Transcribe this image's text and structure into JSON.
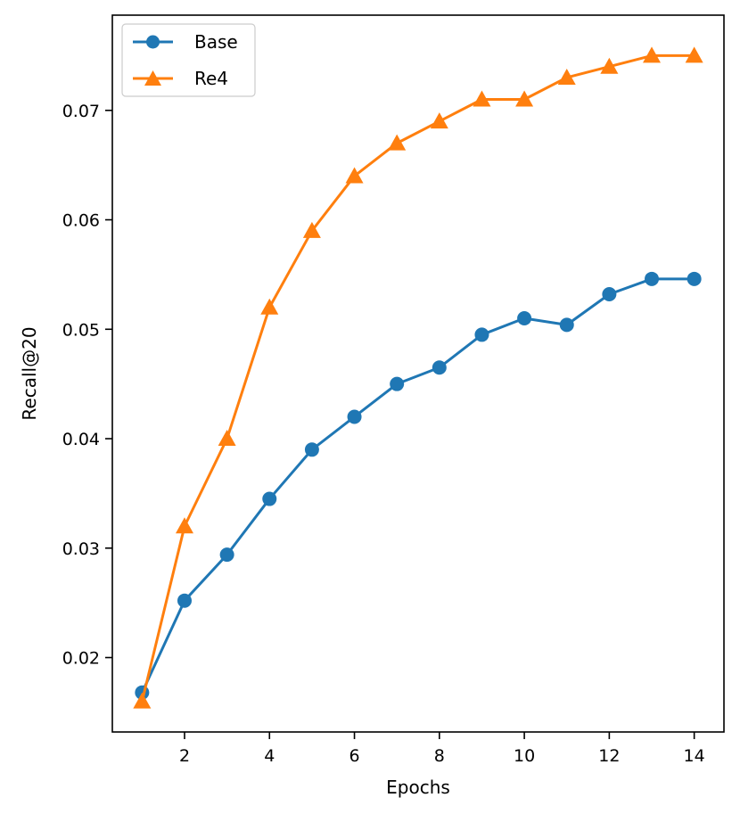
{
  "chart_data": {
    "type": "line",
    "xlabel": "Epochs",
    "ylabel": "Recall@20",
    "xlim": [
      0.3,
      14.7
    ],
    "ylim": [
      0.0132,
      0.0787
    ],
    "xticks": [
      2,
      4,
      6,
      8,
      10,
      12,
      14
    ],
    "yticks": [
      0.02,
      0.03,
      0.04,
      0.05,
      0.06,
      0.07
    ],
    "ytick_labels": [
      "0.02",
      "0.03",
      "0.04",
      "0.05",
      "0.06",
      "0.07"
    ],
    "grid": false,
    "legend_position": "top-left",
    "x": [
      1,
      2,
      3,
      4,
      5,
      6,
      7,
      8,
      9,
      10,
      11,
      12,
      13,
      14
    ],
    "series": [
      {
        "name": "Base",
        "marker": "circle",
        "color": "#1f77b4",
        "values": [
          0.0168,
          0.0252,
          0.0294,
          0.0345,
          0.039,
          0.042,
          0.045,
          0.0465,
          0.0495,
          0.051,
          0.0504,
          0.0532,
          0.0546,
          0.0546
        ]
      },
      {
        "name": "Re4",
        "marker": "triangle",
        "color": "#ff7f0e",
        "values": [
          0.016,
          0.032,
          0.04,
          0.052,
          0.059,
          0.064,
          0.067,
          0.069,
          0.071,
          0.071,
          0.073,
          0.074,
          0.075,
          0.075
        ]
      }
    ]
  }
}
